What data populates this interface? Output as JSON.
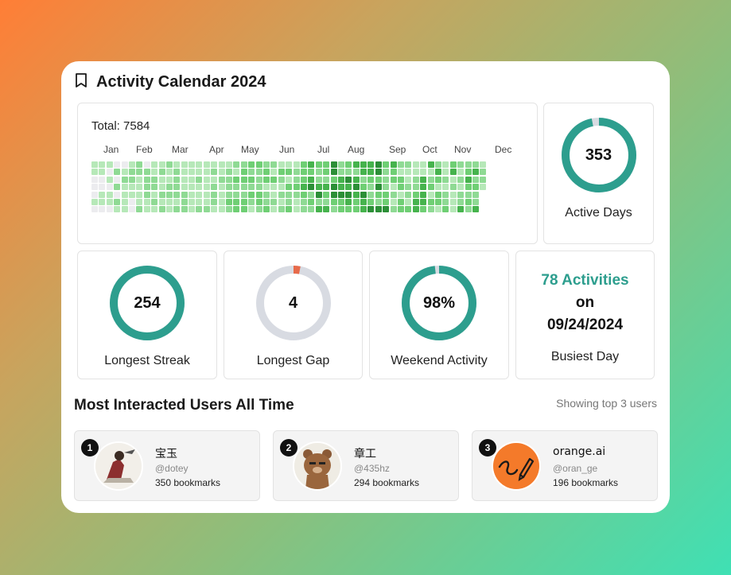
{
  "header": {
    "title": "Activity Calendar 2024",
    "icon": "bookmark-icon"
  },
  "heatmap": {
    "total": "Total: 7584",
    "months": [
      "Jan",
      "Feb",
      "Mar",
      "Apr",
      "May",
      "Jun",
      "Jul",
      "Aug",
      "Sep",
      "Oct",
      "Nov",
      "Dec"
    ]
  },
  "stats": {
    "active_days": {
      "value": "353",
      "label": "Active Days",
      "progress": 0.967
    },
    "longest_streak": {
      "value": "254",
      "label": "Longest Streak",
      "progress": 1.0
    },
    "longest_gap": {
      "value": "4",
      "label": "Longest Gap",
      "progress": 0.03
    },
    "weekend_activity": {
      "value": "98%",
      "label": "Weekend Activity",
      "progress": 0.98
    },
    "busiest_day": {
      "activities": "78 Activities",
      "on": "on",
      "date": "09/24/2024",
      "label": "Busiest Day"
    }
  },
  "colors": {
    "ring_teal": "#2d9e8e",
    "ring_track": "#d8dbe2",
    "ring_gap": "#e76a4a",
    "accent_text": "#2d9e8e"
  },
  "users_section": {
    "title": "Most Interacted Users All Time",
    "showing": "Showing top 3 users",
    "users": [
      {
        "rank": "1",
        "name": "宝玉",
        "handle": "@dotey",
        "bookmarks": "350 bookmarks"
      },
      {
        "rank": "2",
        "name": "章工",
        "handle": "@435hz",
        "bookmarks": "294 bookmarks"
      },
      {
        "rank": "3",
        "name": "orange.ai",
        "handle": "@oran_ge",
        "bookmarks": "196 bookmarks"
      }
    ]
  }
}
